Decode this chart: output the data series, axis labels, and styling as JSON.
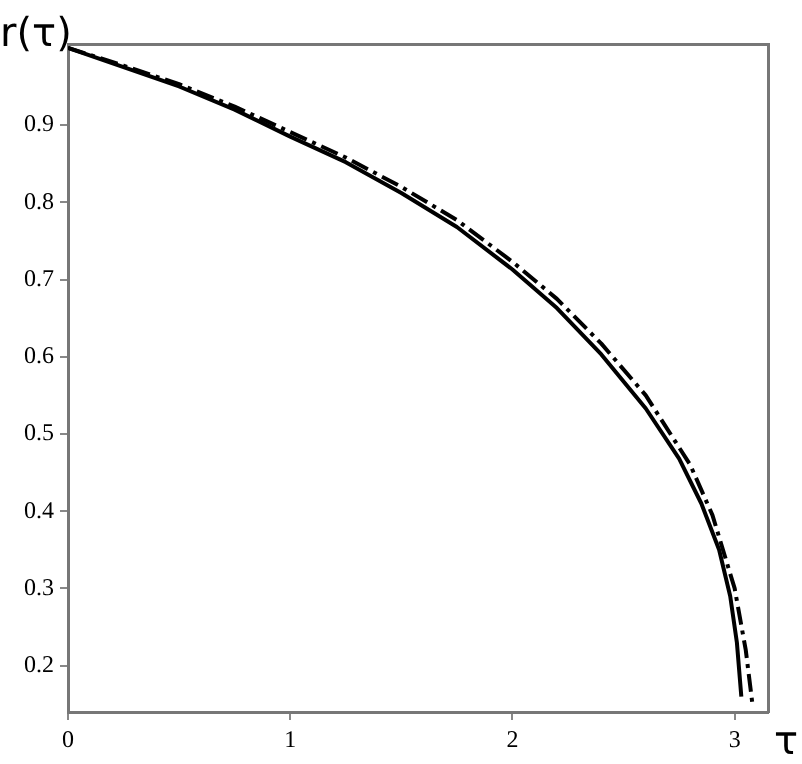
{
  "chart_data": {
    "type": "line",
    "xlabel": "τ",
    "ylabel": "r(τ)",
    "xlim": [
      0,
      3.15
    ],
    "xticks": [
      0,
      1,
      2,
      3
    ],
    "ylim": [
      0.14,
      1.005
    ],
    "yticks": [
      0.2,
      0.3,
      0.4,
      0.5,
      0.6,
      0.7,
      0.8,
      0.9
    ],
    "grid": false,
    "legend": false,
    "marker": "none",
    "series": [
      {
        "color": "#000000",
        "line_style": "solid",
        "x": [
          0,
          0.25,
          0.5,
          0.75,
          1.0,
          1.25,
          1.5,
          1.75,
          2.0,
          2.2,
          2.4,
          2.6,
          2.75,
          2.85,
          2.93,
          2.98,
          3.01,
          3.03
        ],
        "values": [
          1.0,
          0.975,
          0.95,
          0.92,
          0.885,
          0.852,
          0.812,
          0.768,
          0.713,
          0.663,
          0.603,
          0.533,
          0.468,
          0.41,
          0.35,
          0.29,
          0.23,
          0.16
        ]
      },
      {
        "color": "#000000",
        "line_style": "dashdot",
        "x": [
          0,
          0.25,
          0.5,
          0.75,
          1.0,
          1.25,
          1.5,
          1.75,
          2.0,
          2.2,
          2.4,
          2.6,
          2.8,
          2.9,
          3.0,
          3.05,
          3.08
        ],
        "values": [
          1.0,
          0.977,
          0.953,
          0.924,
          0.891,
          0.858,
          0.82,
          0.777,
          0.723,
          0.675,
          0.617,
          0.55,
          0.46,
          0.395,
          0.3,
          0.22,
          0.15
        ]
      }
    ]
  }
}
